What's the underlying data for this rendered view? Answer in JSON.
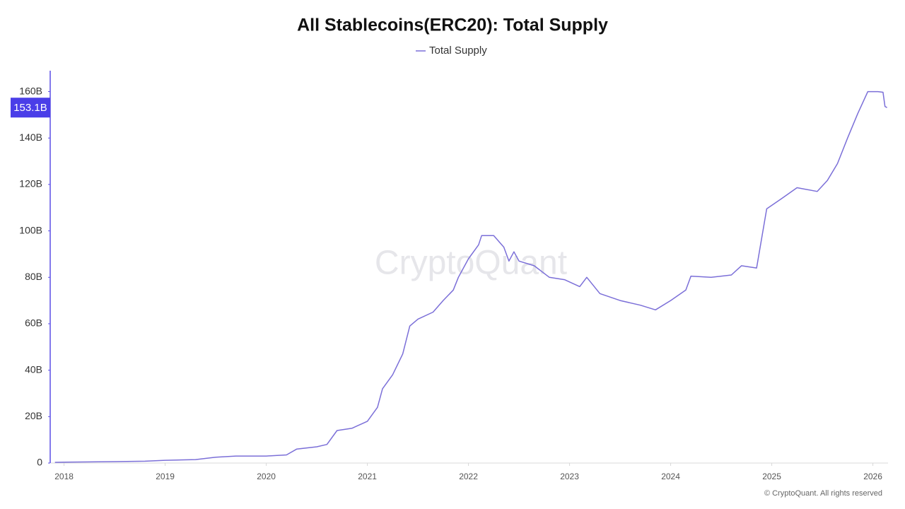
{
  "chart_data": {
    "type": "line",
    "title": "All Stablecoins(ERC20): Total Supply",
    "watermark": "CryptoQuant",
    "footer": "© CryptoQuant. All rights reserved",
    "grid": false,
    "legend": "top",
    "series": [
      {
        "name": "Total Supply",
        "color": "#7b6fd8",
        "x": [
          2017.91,
          2018.0,
          2018.5,
          2018.8,
          2019.0,
          2019.3,
          2019.5,
          2019.7,
          2020.0,
          2020.2,
          2020.3,
          2020.5,
          2020.6,
          2020.7,
          2020.85,
          2021.0,
          2021.1,
          2021.15,
          2021.25,
          2021.35,
          2021.42,
          2021.5,
          2021.65,
          2021.75,
          2021.85,
          2021.9,
          2022.0,
          2022.1,
          2022.13,
          2022.25,
          2022.35,
          2022.4,
          2022.45,
          2022.5,
          2022.65,
          2022.8,
          2022.95,
          2023.1,
          2023.17,
          2023.3,
          2023.5,
          2023.7,
          2023.85,
          2024.0,
          2024.15,
          2024.2,
          2024.4,
          2024.6,
          2024.7,
          2024.85,
          2024.95,
          2025.1,
          2025.25,
          2025.45,
          2025.55,
          2025.65,
          2025.75,
          2025.85,
          2025.95,
          2026.05,
          2026.1,
          2026.12,
          2026.14
        ],
        "values": [
          0.3,
          0.4,
          0.6,
          0.8,
          1.2,
          1.5,
          2.5,
          3.0,
          3.0,
          3.5,
          6,
          7,
          8,
          14,
          15,
          18,
          24,
          32,
          38,
          47,
          59,
          62,
          65,
          70,
          74.5,
          80,
          88,
          94,
          98,
          98,
          93,
          87,
          91,
          87,
          85,
          80,
          79,
          76,
          80,
          73,
          70,
          68,
          66,
          70,
          74.5,
          80.5,
          80,
          81,
          85,
          84,
          109.5,
          114,
          118.6,
          117,
          121.7,
          129,
          140,
          150.5,
          160,
          160,
          159.7,
          153.6,
          153.1
        ]
      }
    ],
    "last_value": {
      "value": 153.1,
      "label": "153.1B"
    },
    "xlim": [
      2017.87,
      2026.15
    ],
    "xticks": [
      2018,
      2019,
      2020,
      2021,
      2022,
      2023,
      2024,
      2025,
      2026
    ],
    "ylim": [
      0,
      169
    ],
    "yticks": [
      {
        "value": 0,
        "label": "0"
      },
      {
        "value": 20,
        "label": "20B"
      },
      {
        "value": 40,
        "label": "40B"
      },
      {
        "value": 60,
        "label": "60B"
      },
      {
        "value": 80,
        "label": "80B"
      },
      {
        "value": 100,
        "label": "100B"
      },
      {
        "value": 120,
        "label": "120B"
      },
      {
        "value": 140,
        "label": "140B"
      },
      {
        "value": 160,
        "label": "160B"
      }
    ]
  }
}
